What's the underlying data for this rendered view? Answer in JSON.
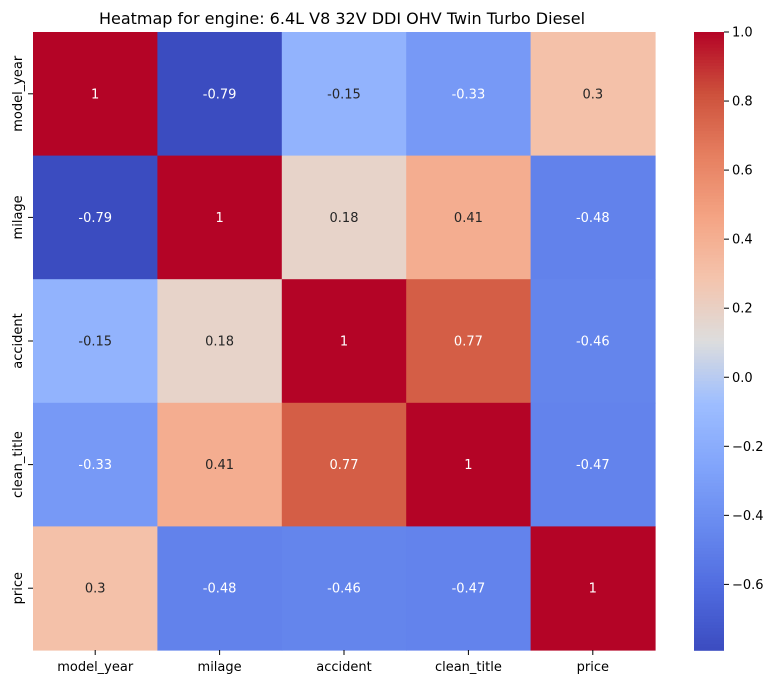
{
  "chart_data": {
    "type": "heatmap",
    "title": "Heatmap for engine: 6.4L V8 32V DDI OHV Twin Turbo Diesel",
    "xlabel": "",
    "ylabel": "",
    "x_labels": [
      "model_year",
      "milage",
      "accident",
      "clean_title",
      "price"
    ],
    "y_labels": [
      "model_year",
      "milage",
      "accident",
      "clean_title",
      "price"
    ],
    "values": [
      [
        1,
        -0.79,
        -0.15,
        -0.33,
        0.3
      ],
      [
        -0.79,
        1,
        0.18,
        0.41,
        -0.48
      ],
      [
        -0.15,
        0.18,
        1,
        0.77,
        -0.46
      ],
      [
        -0.33,
        0.41,
        0.77,
        1,
        -0.47
      ],
      [
        0.3,
        -0.48,
        -0.46,
        -0.47,
        1
      ]
    ],
    "cell_labels": [
      [
        "1",
        "-0.79",
        "-0.15",
        "-0.33",
        "0.3"
      ],
      [
        "-0.79",
        "1",
        "0.18",
        "0.41",
        "-0.48"
      ],
      [
        "-0.15",
        "0.18",
        "1",
        "0.77",
        "-0.46"
      ],
      [
        "-0.33",
        "0.41",
        "0.77",
        "1",
        "-0.47"
      ],
      [
        "0.3",
        "-0.48",
        "-0.46",
        "-0.47",
        "1"
      ]
    ],
    "colormap": "coolwarm",
    "colorbar": {
      "range": [
        -0.79,
        1.0
      ],
      "ticks": [
        1.0,
        0.8,
        0.6,
        0.4,
        0.2,
        0.0,
        -0.2,
        -0.4,
        -0.6
      ],
      "tick_labels": [
        "1.0",
        "0.8",
        "0.6",
        "0.4",
        "0.2",
        "0.0",
        "−0.2",
        "−0.4",
        "−0.6"
      ]
    }
  }
}
